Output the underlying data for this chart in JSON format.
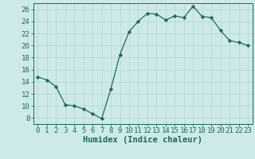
{
  "x": [
    0,
    1,
    2,
    3,
    4,
    5,
    6,
    7,
    8,
    9,
    10,
    11,
    12,
    13,
    14,
    15,
    16,
    17,
    18,
    19,
    20,
    21,
    22,
    23
  ],
  "y": [
    14.8,
    14.3,
    13.2,
    10.2,
    10.0,
    9.5,
    8.7,
    7.9,
    12.8,
    18.5,
    22.3,
    24.0,
    25.3,
    25.2,
    24.2,
    24.9,
    24.6,
    26.5,
    24.8,
    24.6,
    22.5,
    20.8,
    20.5,
    20.0
  ],
  "xlim": [
    -0.5,
    23.5
  ],
  "ylim": [
    7,
    27
  ],
  "yticks": [
    8,
    10,
    12,
    14,
    16,
    18,
    20,
    22,
    24,
    26
  ],
  "xticks": [
    0,
    1,
    2,
    3,
    4,
    5,
    6,
    7,
    8,
    9,
    10,
    11,
    12,
    13,
    14,
    15,
    16,
    17,
    18,
    19,
    20,
    21,
    22,
    23
  ],
  "xlabel": "Humidex (Indice chaleur)",
  "line_color": "#1a6b5a",
  "marker": "D",
  "marker_size": 2.2,
  "bg_color": "#ceeae8",
  "grid_color": "#b8d8d4",
  "axes_color": "#1a6b5a",
  "xlabel_fontsize": 7.5,
  "tick_fontsize": 6.5
}
